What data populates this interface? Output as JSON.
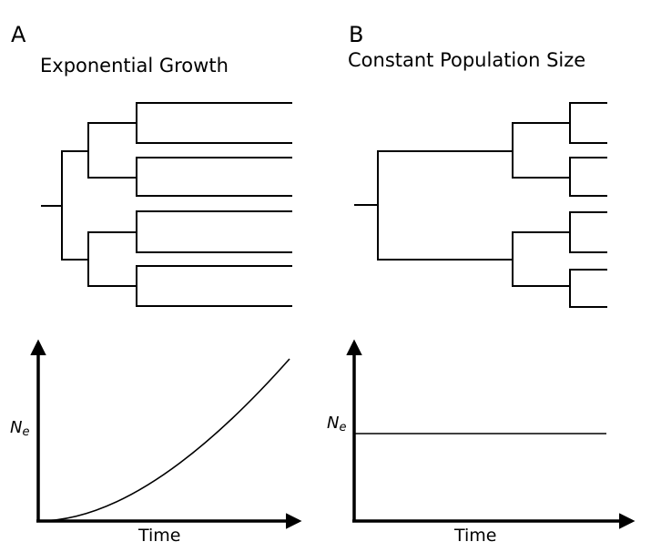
{
  "panels": [
    {
      "letter": "A",
      "title": "Exponential Growth",
      "y_axis_label": "N",
      "y_axis_label_subscript": "e",
      "x_axis_label": "Time",
      "population_trend": "exponential"
    },
    {
      "letter": "B",
      "title": "Constant Population Size",
      "y_axis_label": "N",
      "y_axis_label_subscript": "e",
      "x_axis_label": "Time",
      "population_trend": "constant"
    }
  ]
}
